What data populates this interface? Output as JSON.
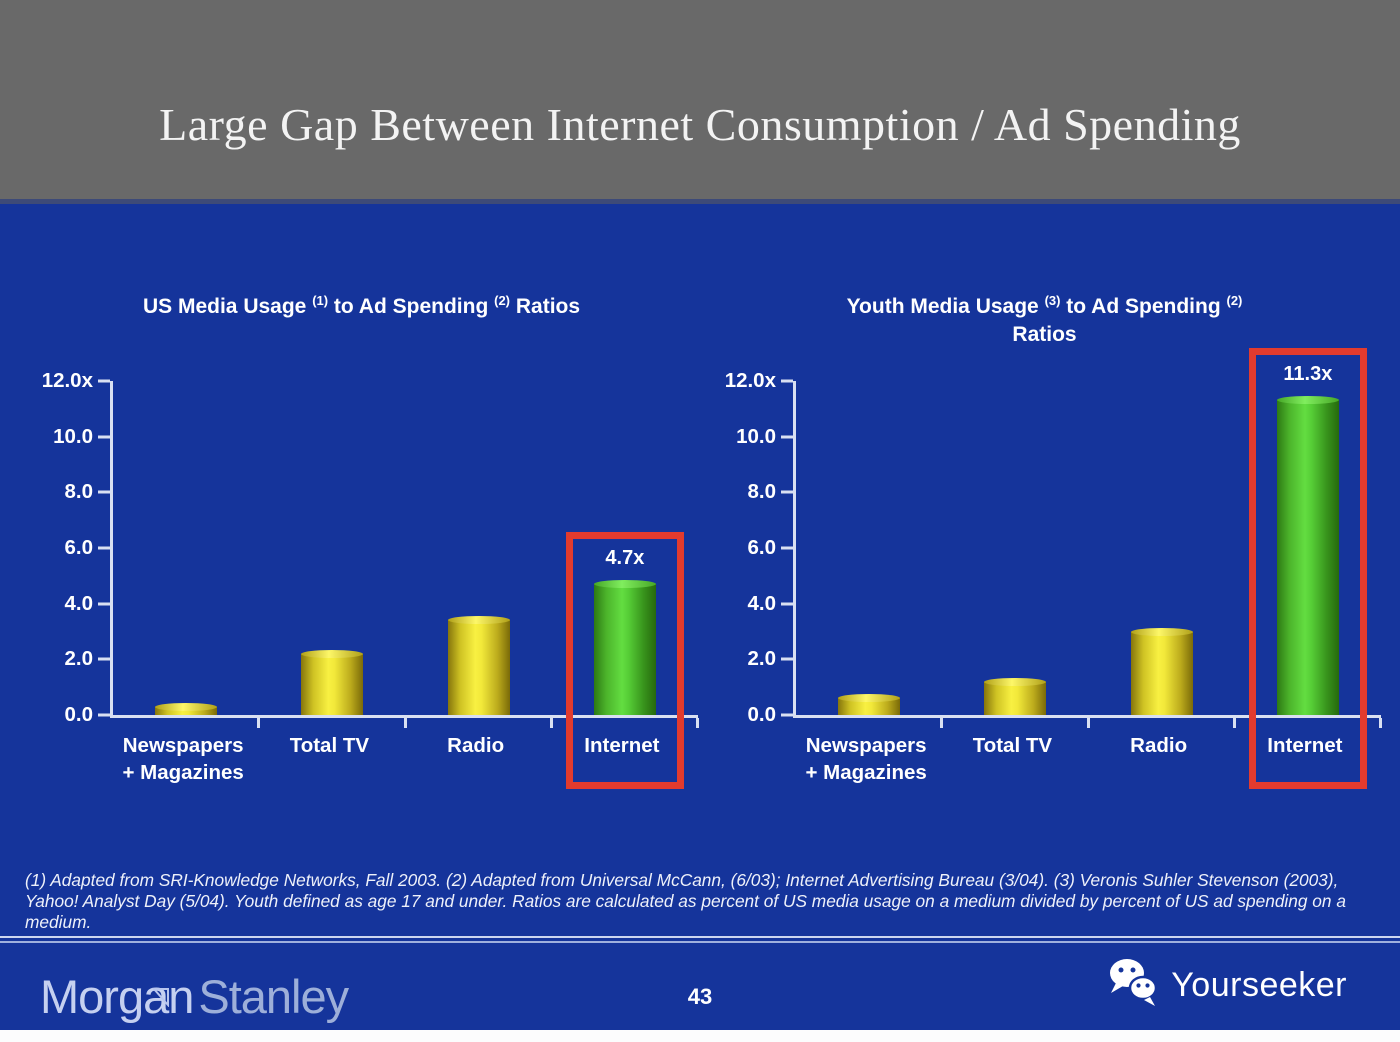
{
  "header": {
    "title": "Large Gap Between Internet Consumption / Ad Spending"
  },
  "chart_data": [
    {
      "type": "bar",
      "title": "US Media Usage (1) to Ad Spending (2) Ratios",
      "title_lines": [
        [
          {
            "t": "US Media Usage "
          },
          {
            "sup": "(1)"
          },
          {
            "t": " to Ad Spending "
          },
          {
            "sup": "(2)"
          },
          {
            "t": " Ratios"
          }
        ]
      ],
      "categories": [
        "Newspapers\n+ Magazines",
        "Total TV",
        "Radio",
        "Internet"
      ],
      "values": [
        0.3,
        2.2,
        3.4,
        4.7
      ],
      "bar_colors": [
        "yellow",
        "yellow",
        "yellow",
        "green"
      ],
      "highlight_index": 3,
      "highlight_label": "4.7x",
      "yticks": [
        "12.0x",
        "10.0",
        "8.0",
        "6.0",
        "4.0",
        "2.0",
        "0.0"
      ],
      "ylim": [
        0,
        12
      ],
      "xlabel": "",
      "ylabel": "",
      "grid": false,
      "legend": null
    },
    {
      "type": "bar",
      "title": "Youth Media Usage (3) to Ad Spending (2) Ratios",
      "title_lines": [
        [
          {
            "t": "Youth Media Usage "
          },
          {
            "sup": "(3)"
          },
          {
            "t": " to Ad Spending "
          },
          {
            "sup": "(2)"
          }
        ],
        [
          {
            "t": "Ratios"
          }
        ]
      ],
      "categories": [
        "Newspapers\n+ Magazines",
        "Total TV",
        "Radio",
        "Internet"
      ],
      "values": [
        0.6,
        1.2,
        3.0,
        11.3
      ],
      "bar_colors": [
        "yellow",
        "yellow",
        "yellow",
        "green"
      ],
      "highlight_index": 3,
      "highlight_label": "11.3x",
      "yticks": [
        "12.0x",
        "10.0",
        "8.0",
        "6.0",
        "4.0",
        "2.0",
        "0.0"
      ],
      "ylim": [
        0,
        12
      ],
      "xlabel": "",
      "ylabel": "",
      "grid": false,
      "legend": null
    }
  ],
  "footnote": "(1) Adapted from SRI-Knowledge Networks, Fall 2003.  (2) Adapted from Universal McCann, (6/03); Internet Advertising Bureau (3/04). (3) Veronis Suhler Stevenson (2003), Yahoo! Analyst Day (5/04).  Youth defined as age 17 and under.  Ratios are calculated as percent of US media usage on a medium divided by percent of US ad spending on a medium.",
  "footer": {
    "brand_word1": "Morgan",
    "brand_word2": "Stanley",
    "page_number": "43",
    "watermark_label": "Yourseeker",
    "watermark_icon": "wechat-icon"
  },
  "colors": {
    "background_blue": "#15349b",
    "header_gray": "#696969",
    "bar_yellow": "#f2e93a",
    "bar_green": "#57cf37",
    "highlight_red": "#e23b2e",
    "axis_light": "#d9e0f2",
    "title_text": "#f3f3f3"
  }
}
